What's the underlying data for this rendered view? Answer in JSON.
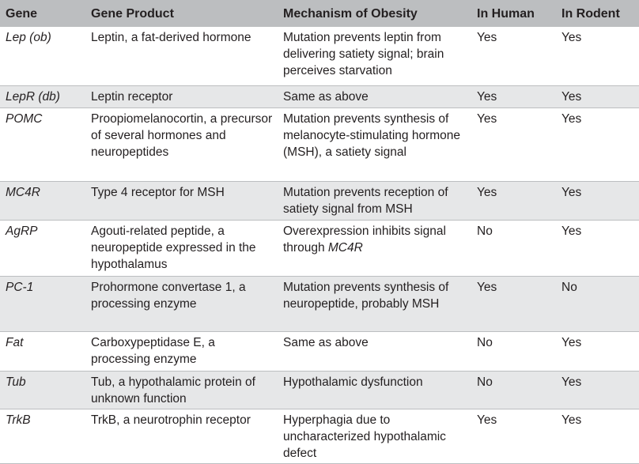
{
  "headers": {
    "gene": "Gene",
    "product": "Gene Product",
    "mechanism": "Mechanism of Obesity",
    "human": "In Human",
    "rodent": "In Rodent"
  },
  "rows": [
    {
      "gene": "Lep (ob)",
      "product": "Leptin, a fat-derived hormone",
      "mechanism": "Mutation prevents leptin from delivering satiety signal; brain perceives starvation",
      "human": "Yes",
      "rodent": "Yes"
    },
    {
      "gene": "LepR (db)",
      "product": "Leptin receptor",
      "mechanism": "Same as above",
      "human": "Yes",
      "rodent": "Yes"
    },
    {
      "gene": "POMC",
      "product": "Proopiomelanocortin, a precursor of several hormones and neuropeptides",
      "mechanism": "Mutation prevents synthesis of melanocyte-stimulating hormone (MSH), a satiety signal",
      "human": "Yes",
      "rodent": "Yes"
    },
    {
      "gene": "MC4R",
      "product": "Type 4 receptor for MSH",
      "mechanism": "Mutation prevents reception of satiety signal from MSH",
      "human": "Yes",
      "rodent": "Yes"
    },
    {
      "gene": "AgRP",
      "product": "Agouti-related peptide, a neuropeptide expressed in the hypothalamus",
      "mechanism_pre": "Overexpression inhibits signal through ",
      "mechanism_em": "MC4R",
      "human": "No",
      "rodent": "Yes"
    },
    {
      "gene": "PC-1",
      "product": "Prohormone convertase 1, a processing enzyme",
      "mechanism": "Mutation prevents synthesis of neuropeptide, probably MSH",
      "human": "Yes",
      "rodent": "No"
    },
    {
      "gene": "Fat",
      "product": "Carboxypeptidase E, a processing enzyme",
      "mechanism": "Same as above",
      "human": "No",
      "rodent": "Yes"
    },
    {
      "gene": "Tub",
      "product": "Tub, a hypothalamic protein of unknown function",
      "mechanism": "Hypothalamic dysfunction",
      "human": "No",
      "rodent": "Yes"
    },
    {
      "gene": "TrkB",
      "product": "TrkB, a neurotrophin receptor",
      "mechanism": "Hyperphagia due to uncharacterized hypothalamic defect",
      "human": "Yes",
      "rodent": "Yes"
    }
  ]
}
